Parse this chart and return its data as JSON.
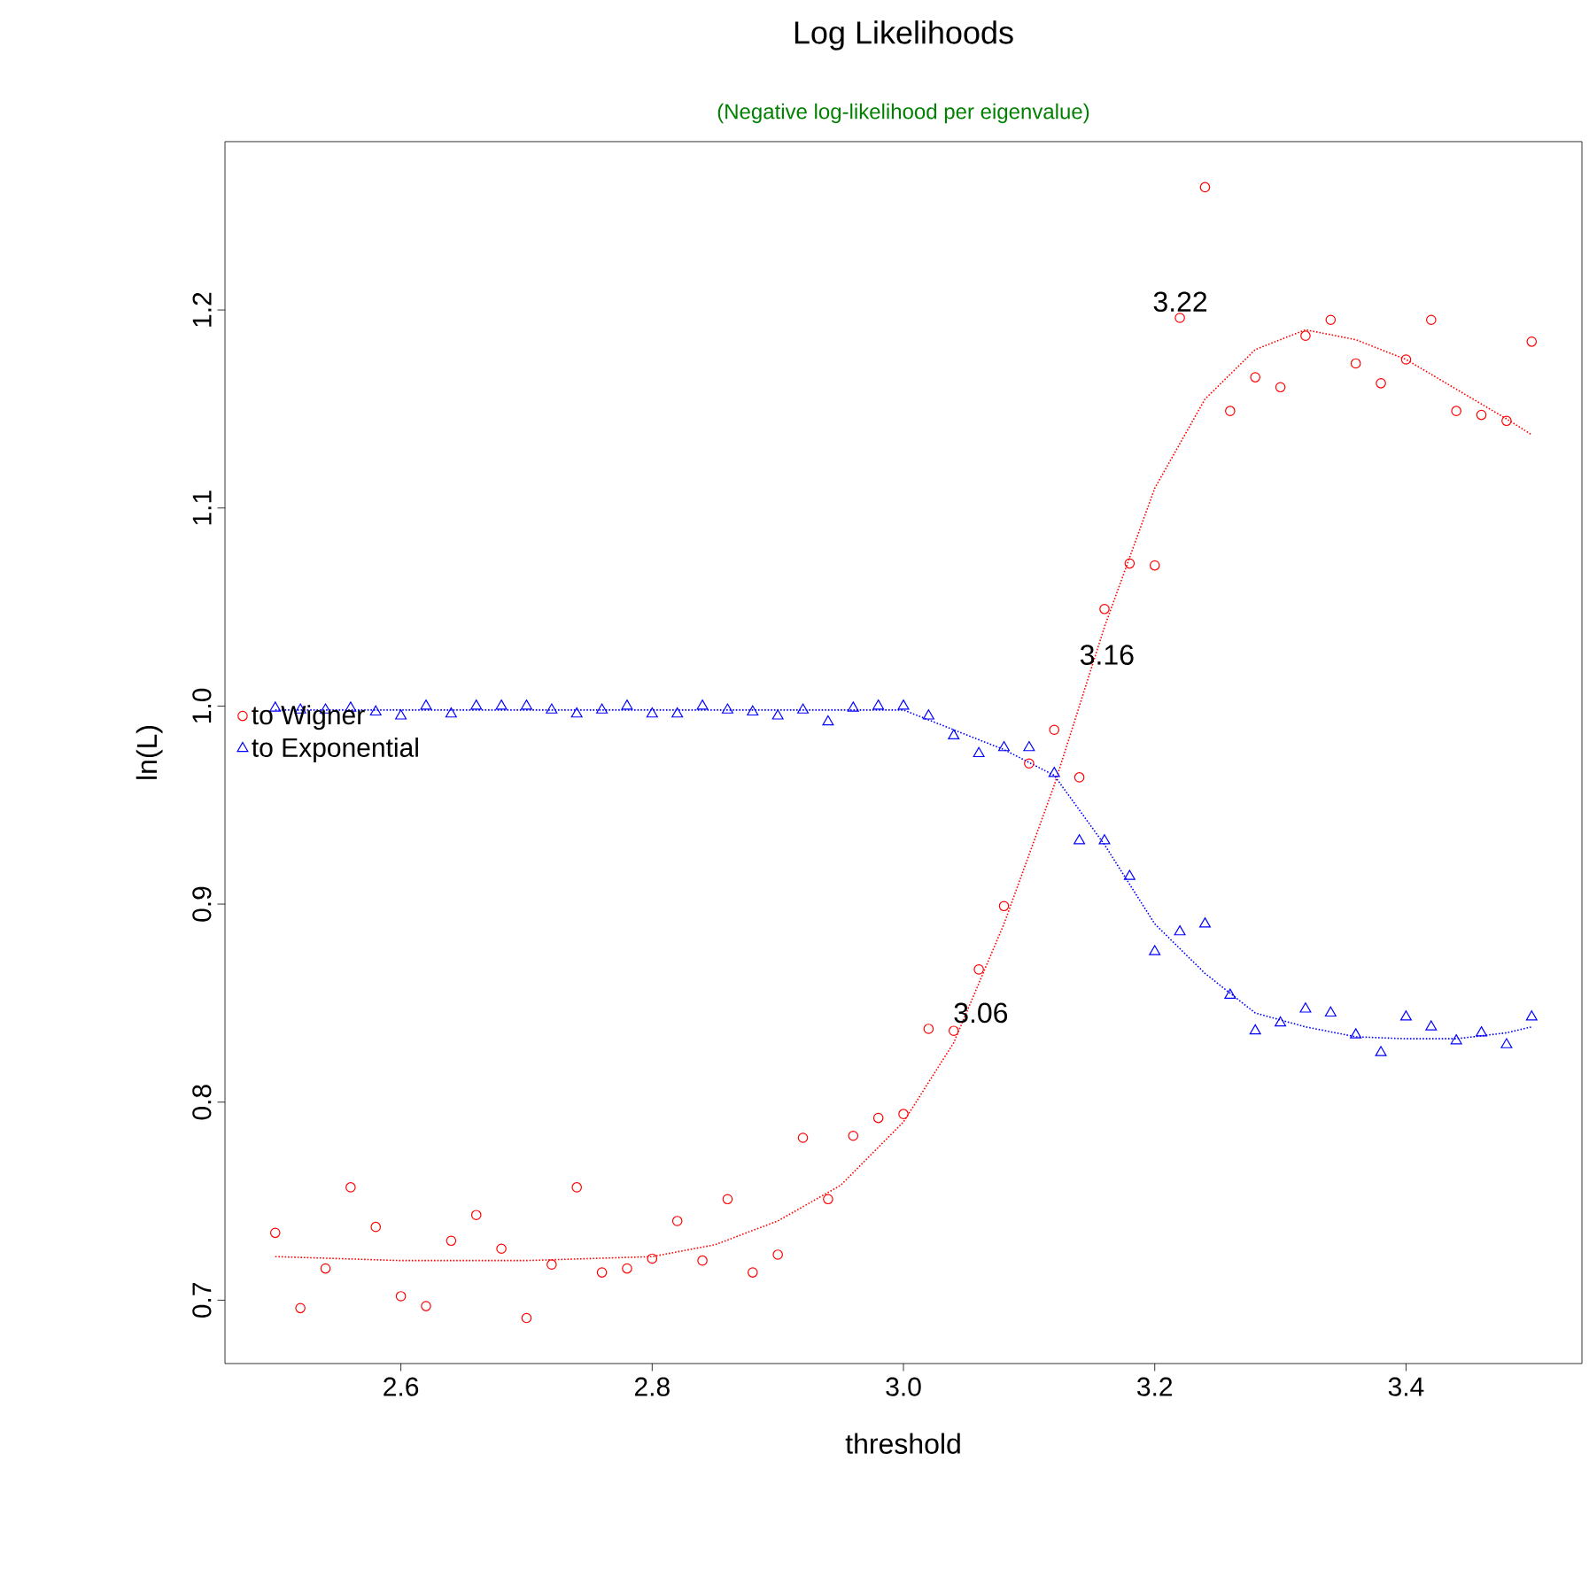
{
  "chart_data": {
    "type": "scatter",
    "title": "Log Likelihoods",
    "subtitle": "(Negative log-likelihood per eigenvalue)",
    "xlabel": "threshold",
    "ylabel": "ln(L)",
    "x": [
      2.5,
      2.52,
      2.54,
      2.56,
      2.58,
      2.6,
      2.62,
      2.64,
      2.66,
      2.68,
      2.7,
      2.72,
      2.74,
      2.76,
      2.78,
      2.8,
      2.82,
      2.84,
      2.86,
      2.88,
      2.9,
      2.92,
      2.94,
      2.96,
      2.98,
      3.0,
      3.02,
      3.04,
      3.06,
      3.08,
      3.1,
      3.12,
      3.14,
      3.16,
      3.18,
      3.2,
      3.22,
      3.24,
      3.26,
      3.28,
      3.3,
      3.32,
      3.34,
      3.36,
      3.38,
      3.4,
      3.42,
      3.44,
      3.46,
      3.48,
      3.5
    ],
    "series": [
      {
        "name": "to Wigner",
        "color": "#ff0000",
        "marker": "circle",
        "values": [
          0.734,
          0.696,
          0.716,
          0.757,
          0.737,
          0.702,
          0.697,
          0.73,
          0.743,
          0.726,
          0.691,
          0.718,
          0.757,
          0.714,
          0.716,
          0.721,
          0.74,
          0.72,
          0.751,
          0.714,
          0.723,
          0.782,
          0.751,
          0.783,
          0.792,
          0.794,
          0.837,
          0.836,
          0.867,
          0.899,
          0.971,
          0.988,
          0.964,
          1.049,
          1.072,
          1.071,
          1.196,
          1.262,
          1.149,
          1.166,
          1.161,
          1.187,
          1.195,
          1.173,
          1.163,
          1.175,
          1.195,
          1.149,
          1.147,
          1.144,
          1.184
        ]
      },
      {
        "name": "to Exponential",
        "color": "#0000ff",
        "marker": "triangle",
        "values": [
          0.999,
          0.998,
          0.998,
          0.999,
          0.997,
          0.995,
          1.0,
          0.996,
          1.0,
          1.0,
          1.0,
          0.998,
          0.996,
          0.998,
          1.0,
          0.996,
          0.996,
          1.0,
          0.998,
          0.997,
          0.995,
          0.998,
          0.992,
          0.999,
          1.0,
          1.0,
          0.995,
          0.985,
          0.976,
          0.979,
          0.979,
          0.966,
          0.932,
          0.932,
          0.914,
          0.876,
          0.886,
          0.89,
          0.854,
          0.836,
          0.84,
          0.847,
          0.845,
          0.834,
          0.825,
          0.843,
          0.838,
          0.831,
          0.835,
          0.829,
          0.843
        ]
      },
      {
        "type": "line",
        "color": "#ff0000",
        "marker": "none",
        "line_style": "dotted",
        "x": [
          2.5,
          2.55,
          2.6,
          2.7,
          2.8,
          2.85,
          2.9,
          2.95,
          3.0,
          3.04,
          3.08,
          3.12,
          3.16,
          3.2,
          3.24,
          3.28,
          3.32,
          3.36,
          3.4,
          3.44,
          3.48,
          3.5
        ],
        "values": [
          0.722,
          0.721,
          0.72,
          0.72,
          0.722,
          0.728,
          0.74,
          0.758,
          0.79,
          0.83,
          0.89,
          0.96,
          1.04,
          1.11,
          1.155,
          1.18,
          1.19,
          1.185,
          1.175,
          1.16,
          1.145,
          1.137
        ]
      },
      {
        "type": "line",
        "color": "#0000ff",
        "marker": "none",
        "line_style": "dotted",
        "x": [
          2.5,
          2.7,
          2.9,
          3.0,
          3.04,
          3.08,
          3.12,
          3.16,
          3.2,
          3.24,
          3.28,
          3.32,
          3.36,
          3.4,
          3.44,
          3.48,
          3.5
        ],
        "values": [
          0.998,
          0.998,
          0.998,
          0.998,
          0.988,
          0.978,
          0.965,
          0.93,
          0.89,
          0.865,
          0.845,
          0.838,
          0.833,
          0.832,
          0.832,
          0.835,
          0.838
        ]
      }
    ],
    "annotations": [
      "3.22",
      "3.16",
      "3.06"
    ],
    "xlim": [
      2.46,
      3.54
    ],
    "ylim": [
      0.668,
      1.285
    ],
    "xticks": [
      2.6,
      2.8,
      {
        "value": 3.0,
        "label": "3.0"
      },
      3.2,
      3.4
    ],
    "yticks": [
      0.7,
      0.8,
      0.9,
      {
        "value": 1.0,
        "label": "1.0"
      },
      1.1,
      1.2
    ],
    "grid": false,
    "legend": "left"
  }
}
